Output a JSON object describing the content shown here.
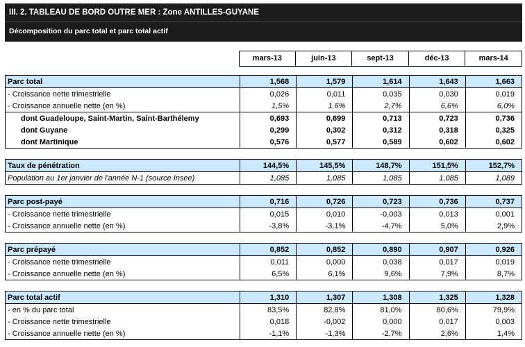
{
  "header": {
    "title": "III. 2. TABLEAU DE BORD OUTRE MER : Zone ANTILLES-GUYANE",
    "subtitle": "Décomposition du parc total et parc total actif"
  },
  "theme": {
    "header_bg": "#1c1c1c",
    "highlight": "#cce9ff",
    "border": "#000000"
  },
  "table": {
    "columns": [
      "mars-13",
      "juin-13",
      "sept-13",
      "déc-13",
      "mars-14"
    ],
    "sections": [
      {
        "name": "parc-total",
        "rows": [
          {
            "label": "Parc total",
            "style": "head",
            "values": [
              "1,568",
              "1,579",
              "1,614",
              "1,643",
              "1,663"
            ]
          },
          {
            "label": "- Croissance nette trimestrielle",
            "style": "",
            "values": [
              "0,026",
              "0,011",
              "0,035",
              "0,030",
              "0,019"
            ]
          },
          {
            "label": "- Croissance annuelle nette (en %)",
            "style": "italic-values",
            "values": [
              "1,5%",
              "1,6%",
              "2,7%",
              "6,6%",
              "6,0%"
            ]
          },
          {
            "label": "dont Guadeloupe, Saint-Martin, Saint-Barthélemy",
            "style": "bold-indent sep",
            "values": [
              "0,693",
              "0,699",
              "0,713",
              "0,723",
              "0,736"
            ]
          },
          {
            "label": "dont Guyane",
            "style": "bold-indent",
            "values": [
              "0,299",
              "0,302",
              "0,312",
              "0,318",
              "0,325"
            ]
          },
          {
            "label": "dont Martinique",
            "style": "bold-indent",
            "values": [
              "0,576",
              "0,577",
              "0,589",
              "0,602",
              "0,602"
            ]
          }
        ]
      },
      {
        "name": "taux-de-penetration",
        "rows": [
          {
            "label": "Taux de pénétration",
            "style": "head",
            "values": [
              "144,5%",
              "145,5%",
              "148,7%",
              "151,5%",
              "152,7%"
            ]
          },
          {
            "label": "Population au 1er janvier de l'année N-1 (source Insee)",
            "style": "italic",
            "values": [
              "1,085",
              "1,085",
              "1,085",
              "1,085",
              "1,089"
            ]
          }
        ]
      },
      {
        "name": "parc-post-paye",
        "rows": [
          {
            "label": "Parc post-payé",
            "style": "head",
            "values": [
              "0,716",
              "0,726",
              "0,723",
              "0,736",
              "0,737"
            ]
          },
          {
            "label": "- Croissance nette trimestrielle",
            "style": "",
            "values": [
              "0,015",
              "0,010",
              "-0,003",
              "0,013",
              "0,001"
            ]
          },
          {
            "label": "- Croissance annuelle nette (en %)",
            "style": "",
            "values": [
              "-3,8%",
              "-3,1%",
              "-4,7%",
              "5,0%",
              "2,9%"
            ]
          }
        ]
      },
      {
        "name": "parc-prepaye",
        "rows": [
          {
            "label": "Parc prépayé",
            "style": "head",
            "values": [
              "0,852",
              "0,852",
              "0,890",
              "0,907",
              "0,926"
            ]
          },
          {
            "label": "- Croissance nette trimestrielle",
            "style": "",
            "values": [
              "0,011",
              "0,000",
              "0,038",
              "0,017",
              "0,019"
            ]
          },
          {
            "label": "- Croissance annuelle nette (en %)",
            "style": "",
            "values": [
              "6,5%",
              "6,1%",
              "9,6%",
              "7,9%",
              "8,7%"
            ]
          }
        ]
      },
      {
        "name": "parc-total-actif",
        "rows": [
          {
            "label": "Parc total actif",
            "style": "head",
            "values": [
              "1,310",
              "1,307",
              "1,308",
              "1,325",
              "1,328"
            ]
          },
          {
            "label": "- en % du parc total",
            "style": "",
            "values": [
              "83,5%",
              "82,8%",
              "81,0%",
              "80,6%",
              "79,9%"
            ]
          },
          {
            "label": "- Croissance nette trimestrielle",
            "style": "",
            "values": [
              "0,018",
              "-0,002",
              "0,000",
              "0,017",
              "0,003"
            ]
          },
          {
            "label": "- Croissance annuelle nette (en %)",
            "style": "",
            "values": [
              "-1,1%",
              "-1,3%",
              "-2,7%",
              "2,6%",
              "1,4%"
            ]
          }
        ]
      }
    ]
  }
}
